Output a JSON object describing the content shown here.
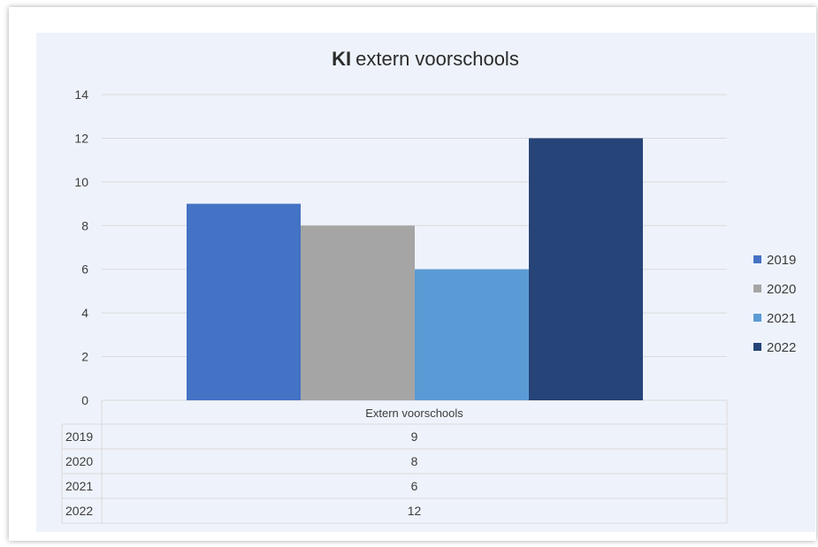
{
  "chart_data": {
    "type": "bar",
    "title_bold": "KI",
    "title_rest": "extern voorschools",
    "categories": [
      "Extern voorschools"
    ],
    "series": [
      {
        "name": "2019",
        "values": [
          9
        ],
        "color": "#4472c4"
      },
      {
        "name": "2020",
        "values": [
          8
        ],
        "color": "#a5a5a5"
      },
      {
        "name": "2021",
        "values": [
          6
        ],
        "color": "#5b9bd5"
      },
      {
        "name": "2022",
        "values": [
          12
        ],
        "color": "#264478"
      }
    ],
    "ylim": [
      0,
      14
    ],
    "yticks": [
      0,
      2,
      4,
      6,
      8,
      10,
      12,
      14
    ],
    "grid": true,
    "legend": "right",
    "data_table": {
      "rows": [
        {
          "label": "2019",
          "value": "9"
        },
        {
          "label": "2020",
          "value": "8"
        },
        {
          "label": "2021",
          "value": "6"
        },
        {
          "label": "2022",
          "value": "12"
        }
      ]
    }
  }
}
